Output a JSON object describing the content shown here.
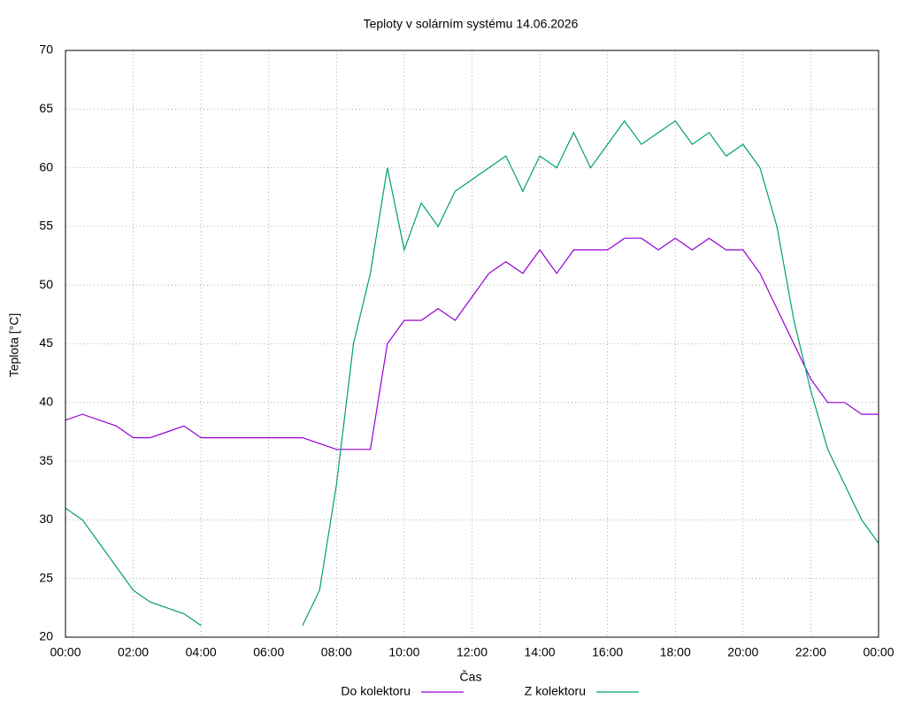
{
  "chart_data": {
    "type": "line",
    "title": "Teploty v solárním systému 14.06.2026",
    "x_label": "Čas",
    "y_label": "Teplota [°C]",
    "x": [
      0,
      0.5,
      1,
      1.5,
      2,
      2.5,
      3,
      3.5,
      4,
      4.5,
      5,
      5.5,
      6,
      6.5,
      7,
      7.5,
      8,
      8.5,
      9,
      9.5,
      10,
      10.5,
      11,
      11.5,
      12,
      12.5,
      13,
      13.5,
      14,
      14.5,
      15,
      15.5,
      16,
      16.5,
      17,
      17.5,
      18,
      18.5,
      19,
      19.5,
      20,
      20.5,
      21,
      21.5,
      22,
      22.5,
      23,
      23.5,
      24
    ],
    "series": [
      {
        "name": "Do kolektoru",
        "color": "#9400d3",
        "values": [
          38.5,
          39,
          38.5,
          38,
          37,
          37,
          37.5,
          38,
          37,
          37,
          37,
          37,
          37,
          37,
          37,
          36.5,
          36,
          36,
          36,
          45,
          47,
          47,
          48,
          47,
          49,
          51,
          52,
          51,
          53,
          51,
          53,
          53,
          53,
          54,
          54,
          53,
          54,
          53,
          54,
          53,
          53,
          51,
          48,
          45,
          42,
          40,
          40,
          39,
          39
        ]
      },
      {
        "name": "Z kolektoru",
        "color": "#009e73",
        "values": [
          31,
          30,
          28,
          26,
          24,
          23,
          22.5,
          22,
          21,
          null,
          null,
          null,
          null,
          null,
          21,
          24,
          33,
          45,
          51,
          60,
          53,
          57,
          55,
          58,
          59,
          60,
          61,
          58,
          61,
          60,
          63,
          60,
          62,
          64,
          62,
          63,
          64,
          62,
          63,
          61,
          62,
          60,
          55,
          47,
          41,
          36,
          33,
          30,
          28
        ]
      }
    ],
    "xlim": [
      0,
      24
    ],
    "xticks": [
      {
        "value": 0,
        "label": "00:00"
      },
      {
        "value": 2,
        "label": "02:00"
      },
      {
        "value": 4,
        "label": "04:00"
      },
      {
        "value": 6,
        "label": "06:00"
      },
      {
        "value": 8,
        "label": "08:00"
      },
      {
        "value": 10,
        "label": "10:00"
      },
      {
        "value": 12,
        "label": "12:00"
      },
      {
        "value": 14,
        "label": "14:00"
      },
      {
        "value": 16,
        "label": "16:00"
      },
      {
        "value": 18,
        "label": "18:00"
      },
      {
        "value": 20,
        "label": "20:00"
      },
      {
        "value": 22,
        "label": "22:00"
      },
      {
        "value": 24,
        "label": "00:00"
      }
    ],
    "ylim": [
      20,
      70
    ],
    "yticks": [
      20,
      25,
      30,
      35,
      40,
      45,
      50,
      55,
      60,
      65,
      70
    ],
    "grid": true
  }
}
